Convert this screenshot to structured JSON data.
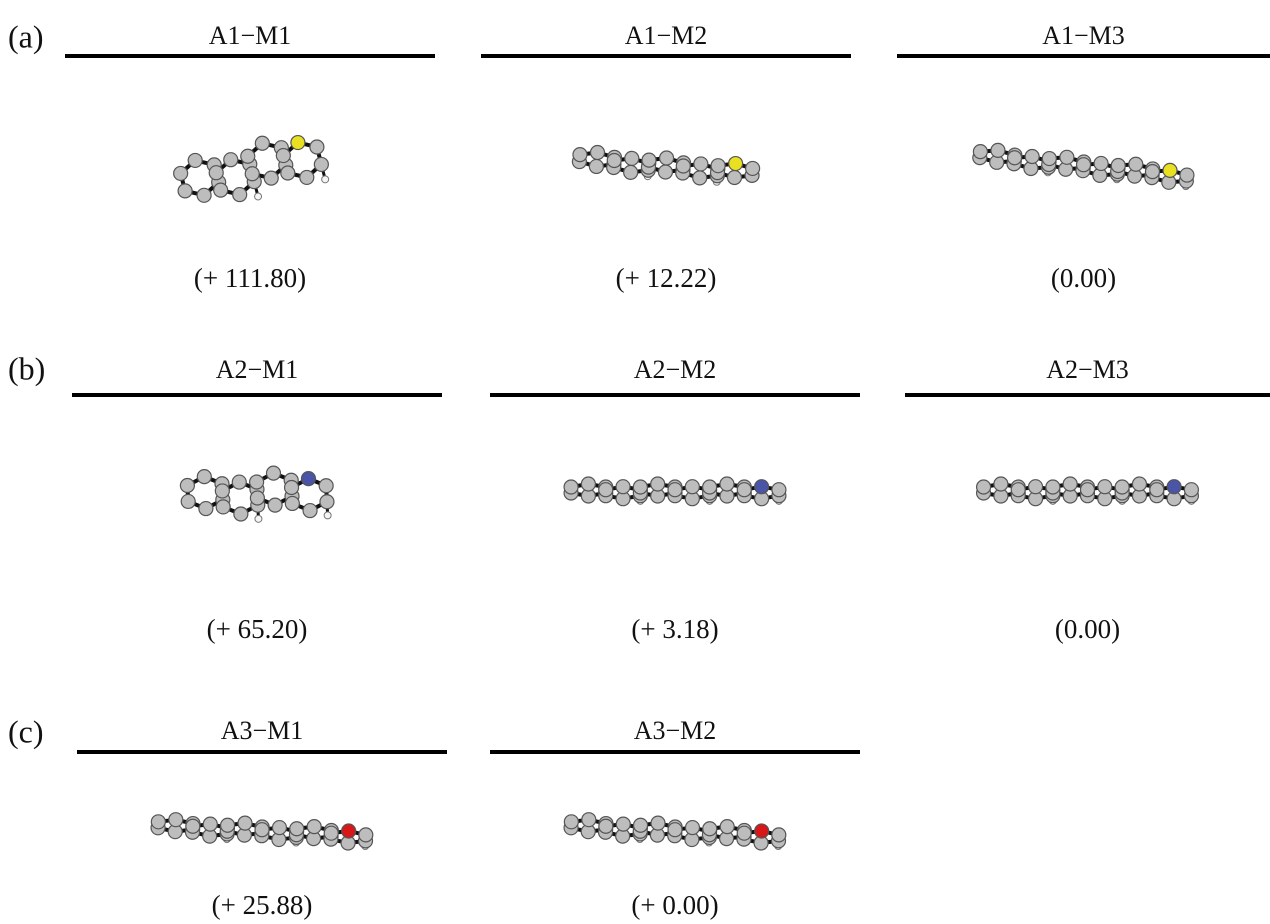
{
  "panels": [
    {
      "label": "(a)",
      "items": [
        {
          "title": "A1−M1",
          "energy": "(+ 111.80)"
        },
        {
          "title": "A1−M2",
          "energy": "(+ 12.22)"
        },
        {
          "title": "A1−M3",
          "energy": "(0.00)"
        }
      ]
    },
    {
      "label": "(b)",
      "items": [
        {
          "title": "A2−M1",
          "energy": "(+ 65.20)"
        },
        {
          "title": "A2−M2",
          "energy": "(+ 3.18)"
        },
        {
          "title": "A2−M3",
          "energy": "(0.00)"
        }
      ]
    },
    {
      "label": "(c)",
      "items": [
        {
          "title": "A3−M1",
          "energy": "(+ 25.88)"
        },
        {
          "title": "A3−M2",
          "energy": "(+ 0.00)"
        }
      ]
    }
  ]
}
